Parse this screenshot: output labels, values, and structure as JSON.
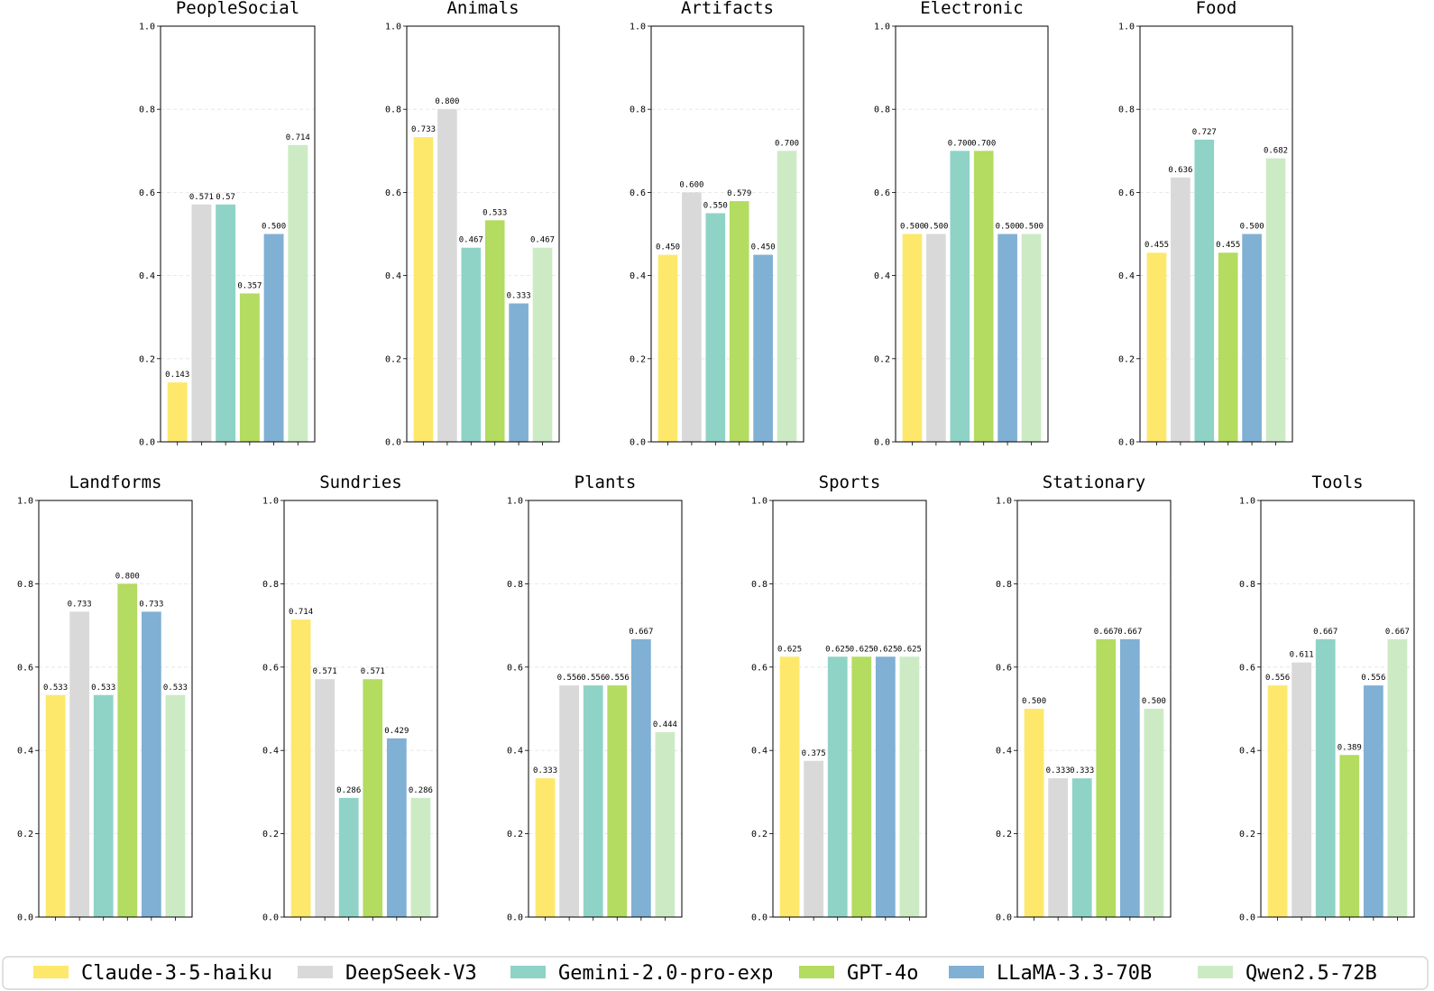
{
  "chart_data": {
    "type": "bar",
    "ylim": [
      0,
      1.0
    ],
    "yticks": [
      "0.0",
      "0.2",
      "0.4",
      "0.6",
      "0.8",
      "1.0"
    ],
    "grid": "dashed-horizontal",
    "series": [
      {
        "name": "Claude-3-5-haiku",
        "color": "#fee86b"
      },
      {
        "name": "DeepSeek-V3",
        "color": "#d9d9d9"
      },
      {
        "name": "Gemini-2.0-pro-exp",
        "color": "#8fd3c7"
      },
      {
        "name": "GPT-4o",
        "color": "#b3dc60"
      },
      {
        "name": "LLaMA-3.3-70B",
        "color": "#80b0d4"
      },
      {
        "name": "Qwen2.5-72B",
        "color": "#ccebc5"
      }
    ],
    "panels": [
      {
        "title": "PeopleSocial",
        "values": [
          0.143,
          0.571,
          0.571,
          0.357,
          0.5,
          0.714
        ],
        "labels": [
          "0.143",
          "0.571",
          "0.57",
          "0.357",
          "0.500",
          "0.714"
        ]
      },
      {
        "title": "Animals",
        "values": [
          0.733,
          0.8,
          0.467,
          0.533,
          0.333,
          0.467
        ],
        "labels": [
          "0.733",
          "0.800",
          "0.467",
          "0.533",
          "0.333",
          "0.467"
        ]
      },
      {
        "title": "Artifacts",
        "values": [
          0.45,
          0.6,
          0.55,
          0.579,
          0.45,
          0.7
        ],
        "labels": [
          "0.450",
          "0.600",
          "0.550",
          "0.579",
          "0.450",
          "0.700"
        ]
      },
      {
        "title": "Electronic",
        "values": [
          0.5,
          0.5,
          0.7,
          0.7,
          0.5,
          0.5
        ],
        "labels": [
          "0.500",
          "0.500",
          "0.700",
          "0.700",
          "0.500",
          "0.500"
        ]
      },
      {
        "title": "Food",
        "values": [
          0.455,
          0.636,
          0.727,
          0.455,
          0.5,
          0.682
        ],
        "labels": [
          "0.455",
          "0.636",
          "0.727",
          "0.455",
          "0.500",
          "0.682"
        ]
      },
      {
        "title": "Landforms",
        "values": [
          0.533,
          0.733,
          0.533,
          0.8,
          0.733,
          0.533
        ],
        "labels": [
          "0.533",
          "0.733",
          "0.533",
          "0.800",
          "0.733",
          "0.533"
        ]
      },
      {
        "title": "Sundries",
        "values": [
          0.714,
          0.571,
          0.286,
          0.571,
          0.429,
          0.286
        ],
        "labels": [
          "0.714",
          "0.571",
          "0.286",
          "0.571",
          "0.429",
          "0.286"
        ]
      },
      {
        "title": "Plants",
        "values": [
          0.333,
          0.556,
          0.556,
          0.556,
          0.667,
          0.444
        ],
        "labels": [
          "0.333",
          "0.556",
          "0.556",
          "0.556",
          "0.667",
          "0.444"
        ]
      },
      {
        "title": "Sports",
        "values": [
          0.625,
          0.375,
          0.625,
          0.625,
          0.625,
          0.625
        ],
        "labels": [
          "0.625",
          "0.375",
          "0.625",
          "0.625",
          "0.625",
          "0.625"
        ]
      },
      {
        "title": "Stationary",
        "values": [
          0.5,
          0.333,
          0.333,
          0.667,
          0.667,
          0.5
        ],
        "labels": [
          "0.500",
          "0.333",
          "0.333",
          "0.667",
          "0.667",
          "0.500"
        ]
      },
      {
        "title": "Tools",
        "values": [
          0.556,
          0.611,
          0.667,
          0.389,
          0.556,
          0.667
        ],
        "labels": [
          "0.556",
          "0.611",
          "0.667",
          "0.389",
          "0.556",
          "0.667"
        ]
      }
    ]
  }
}
